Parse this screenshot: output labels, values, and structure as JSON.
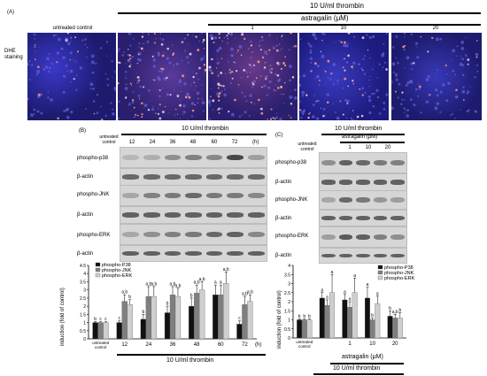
{
  "panelA": {
    "letter": "(A)",
    "stain_label": "DHE staining",
    "lane_labels": [
      "untreated control",
      "",
      "1",
      "10",
      "20"
    ],
    "thrombin_label": "10 U/ml thrombin",
    "astragalin_label": "astragalin (μM)"
  },
  "panelB": {
    "letter": "(B)",
    "thrombin_label": "10 U/ml thrombin",
    "lanes": [
      "untreated control",
      "12",
      "24",
      "36",
      "48",
      "60",
      "72"
    ],
    "unit": "(h)",
    "blot_rows": [
      "phospho-p38",
      "β-actin",
      "phospho-JNK",
      "β-actin",
      "phospho-ERK",
      "β-actin"
    ],
    "legend": [
      "phospho-P38",
      "phospho-JNK",
      "phospho-ERK"
    ],
    "ylabel": "induction (fold of control)",
    "y_ticks": [
      "0",
      "0.5",
      "1",
      "1.5",
      "2",
      "2.5",
      "3",
      "3.5",
      "4",
      "4.5"
    ],
    "x_ticks": [
      "untreated control",
      "12",
      "24",
      "36",
      "48",
      "60",
      "72"
    ],
    "x_unit": "(h)",
    "xlabel": "10 U/ml thrombin",
    "sig": [
      [
        "b",
        "c",
        "c"
      ],
      [
        "c",
        "a,b",
        "b"
      ],
      [
        "b",
        "a,b",
        "a,b"
      ],
      [
        "b",
        "a,b",
        "a,b"
      ],
      [
        "b",
        "a,b",
        "a,b"
      ],
      [
        "a",
        "a",
        "a,b"
      ],
      [
        "c",
        "a,b",
        "a,b"
      ]
    ]
  },
  "panelC": {
    "letter": "(C)",
    "thrombin_label": "10 U/ml thrombin",
    "astragalin_label": "astragalin (μM)",
    "lanes": [
      "untreated control",
      "",
      "1",
      "10",
      "20"
    ],
    "blot_rows": [
      "phospho-p38",
      "β-actin",
      "phospho-JNK",
      "β-actin",
      "phospho-ERK",
      "β-actin"
    ],
    "legend": [
      "phospho-P38",
      "phospho-JNK",
      "phospho-ERK"
    ],
    "ylabel": "induction (fold of control)",
    "y_ticks": [
      "0",
      "0.5",
      "1",
      "1.5",
      "2",
      "2.5",
      "3",
      "3.5",
      "4"
    ],
    "x_ticks": [
      "untreated control",
      "",
      "1",
      "10",
      "20"
    ],
    "astragalin_xlabel": "astragalin (μM)",
    "thrombin_xlabel": "10 U/ml thrombin",
    "sig": [
      [
        "b",
        "b",
        "b"
      ],
      [
        "a",
        "a",
        "a"
      ],
      [
        "a",
        "a",
        "a"
      ],
      [
        "a",
        "b",
        "a"
      ],
      [
        "b",
        "a,b",
        "b"
      ]
    ]
  },
  "colors": {
    "dark": "#111111",
    "mid": "#7f7f7f",
    "light": "#cfcfcf",
    "micro_bg": "#1d1b6e"
  },
  "chart_data": [
    {
      "type": "bar",
      "categories": [
        "untreated control",
        "12",
        "24",
        "36",
        "48",
        "60",
        "72"
      ],
      "series": [
        {
          "name": "phospho-P38",
          "values": [
            1.0,
            1.0,
            1.2,
            1.6,
            2.0,
            2.7,
            0.9
          ]
        },
        {
          "name": "phospho-JNK",
          "values": [
            1.0,
            2.3,
            2.6,
            2.7,
            2.8,
            2.7,
            2.1
          ]
        },
        {
          "name": "phospho-ERK",
          "values": [
            1.0,
            2.1,
            2.6,
            2.6,
            3.0,
            3.4,
            2.3
          ]
        }
      ],
      "errors": [
        [
          0.05,
          0.1,
          0.3,
          0.4,
          0.5,
          0.6,
          0.2
        ],
        [
          0.05,
          0.4,
          0.6,
          0.5,
          0.5,
          0.6,
          0.5
        ],
        [
          0.05,
          0.3,
          0.6,
          0.5,
          0.5,
          0.7,
          0.4
        ]
      ],
      "title": "",
      "xlabel": "10 U/ml thrombin",
      "ylabel": "induction (fold of control)",
      "ylim": [
        0,
        4.5
      ],
      "legend": "top-left",
      "grid": false
    },
    {
      "type": "bar",
      "categories": [
        "untreated control",
        "",
        "1",
        "10",
        "20"
      ],
      "series": [
        {
          "name": "phospho-P38",
          "values": [
            1.0,
            2.2,
            2.1,
            2.2,
            1.2
          ]
        },
        {
          "name": "phospho-JNK",
          "values": [
            1.0,
            1.8,
            1.7,
            1.0,
            1.1
          ]
        },
        {
          "name": "phospho-ERK",
          "values": [
            1.0,
            2.5,
            2.5,
            1.9,
            1.1
          ]
        }
      ],
      "errors": [
        [
          0.05,
          0.3,
          0.3,
          0.6,
          0.3
        ],
        [
          0.05,
          0.3,
          0.3,
          0.1,
          0.2
        ],
        [
          0.05,
          1.0,
          0.8,
          0.4,
          0.3
        ]
      ],
      "title": "",
      "xlabel": "astragalin (μM) / 10 U/ml thrombin",
      "ylabel": "induction (fold of control)",
      "ylim": [
        0,
        4
      ],
      "legend": "top-right",
      "grid": false
    }
  ]
}
